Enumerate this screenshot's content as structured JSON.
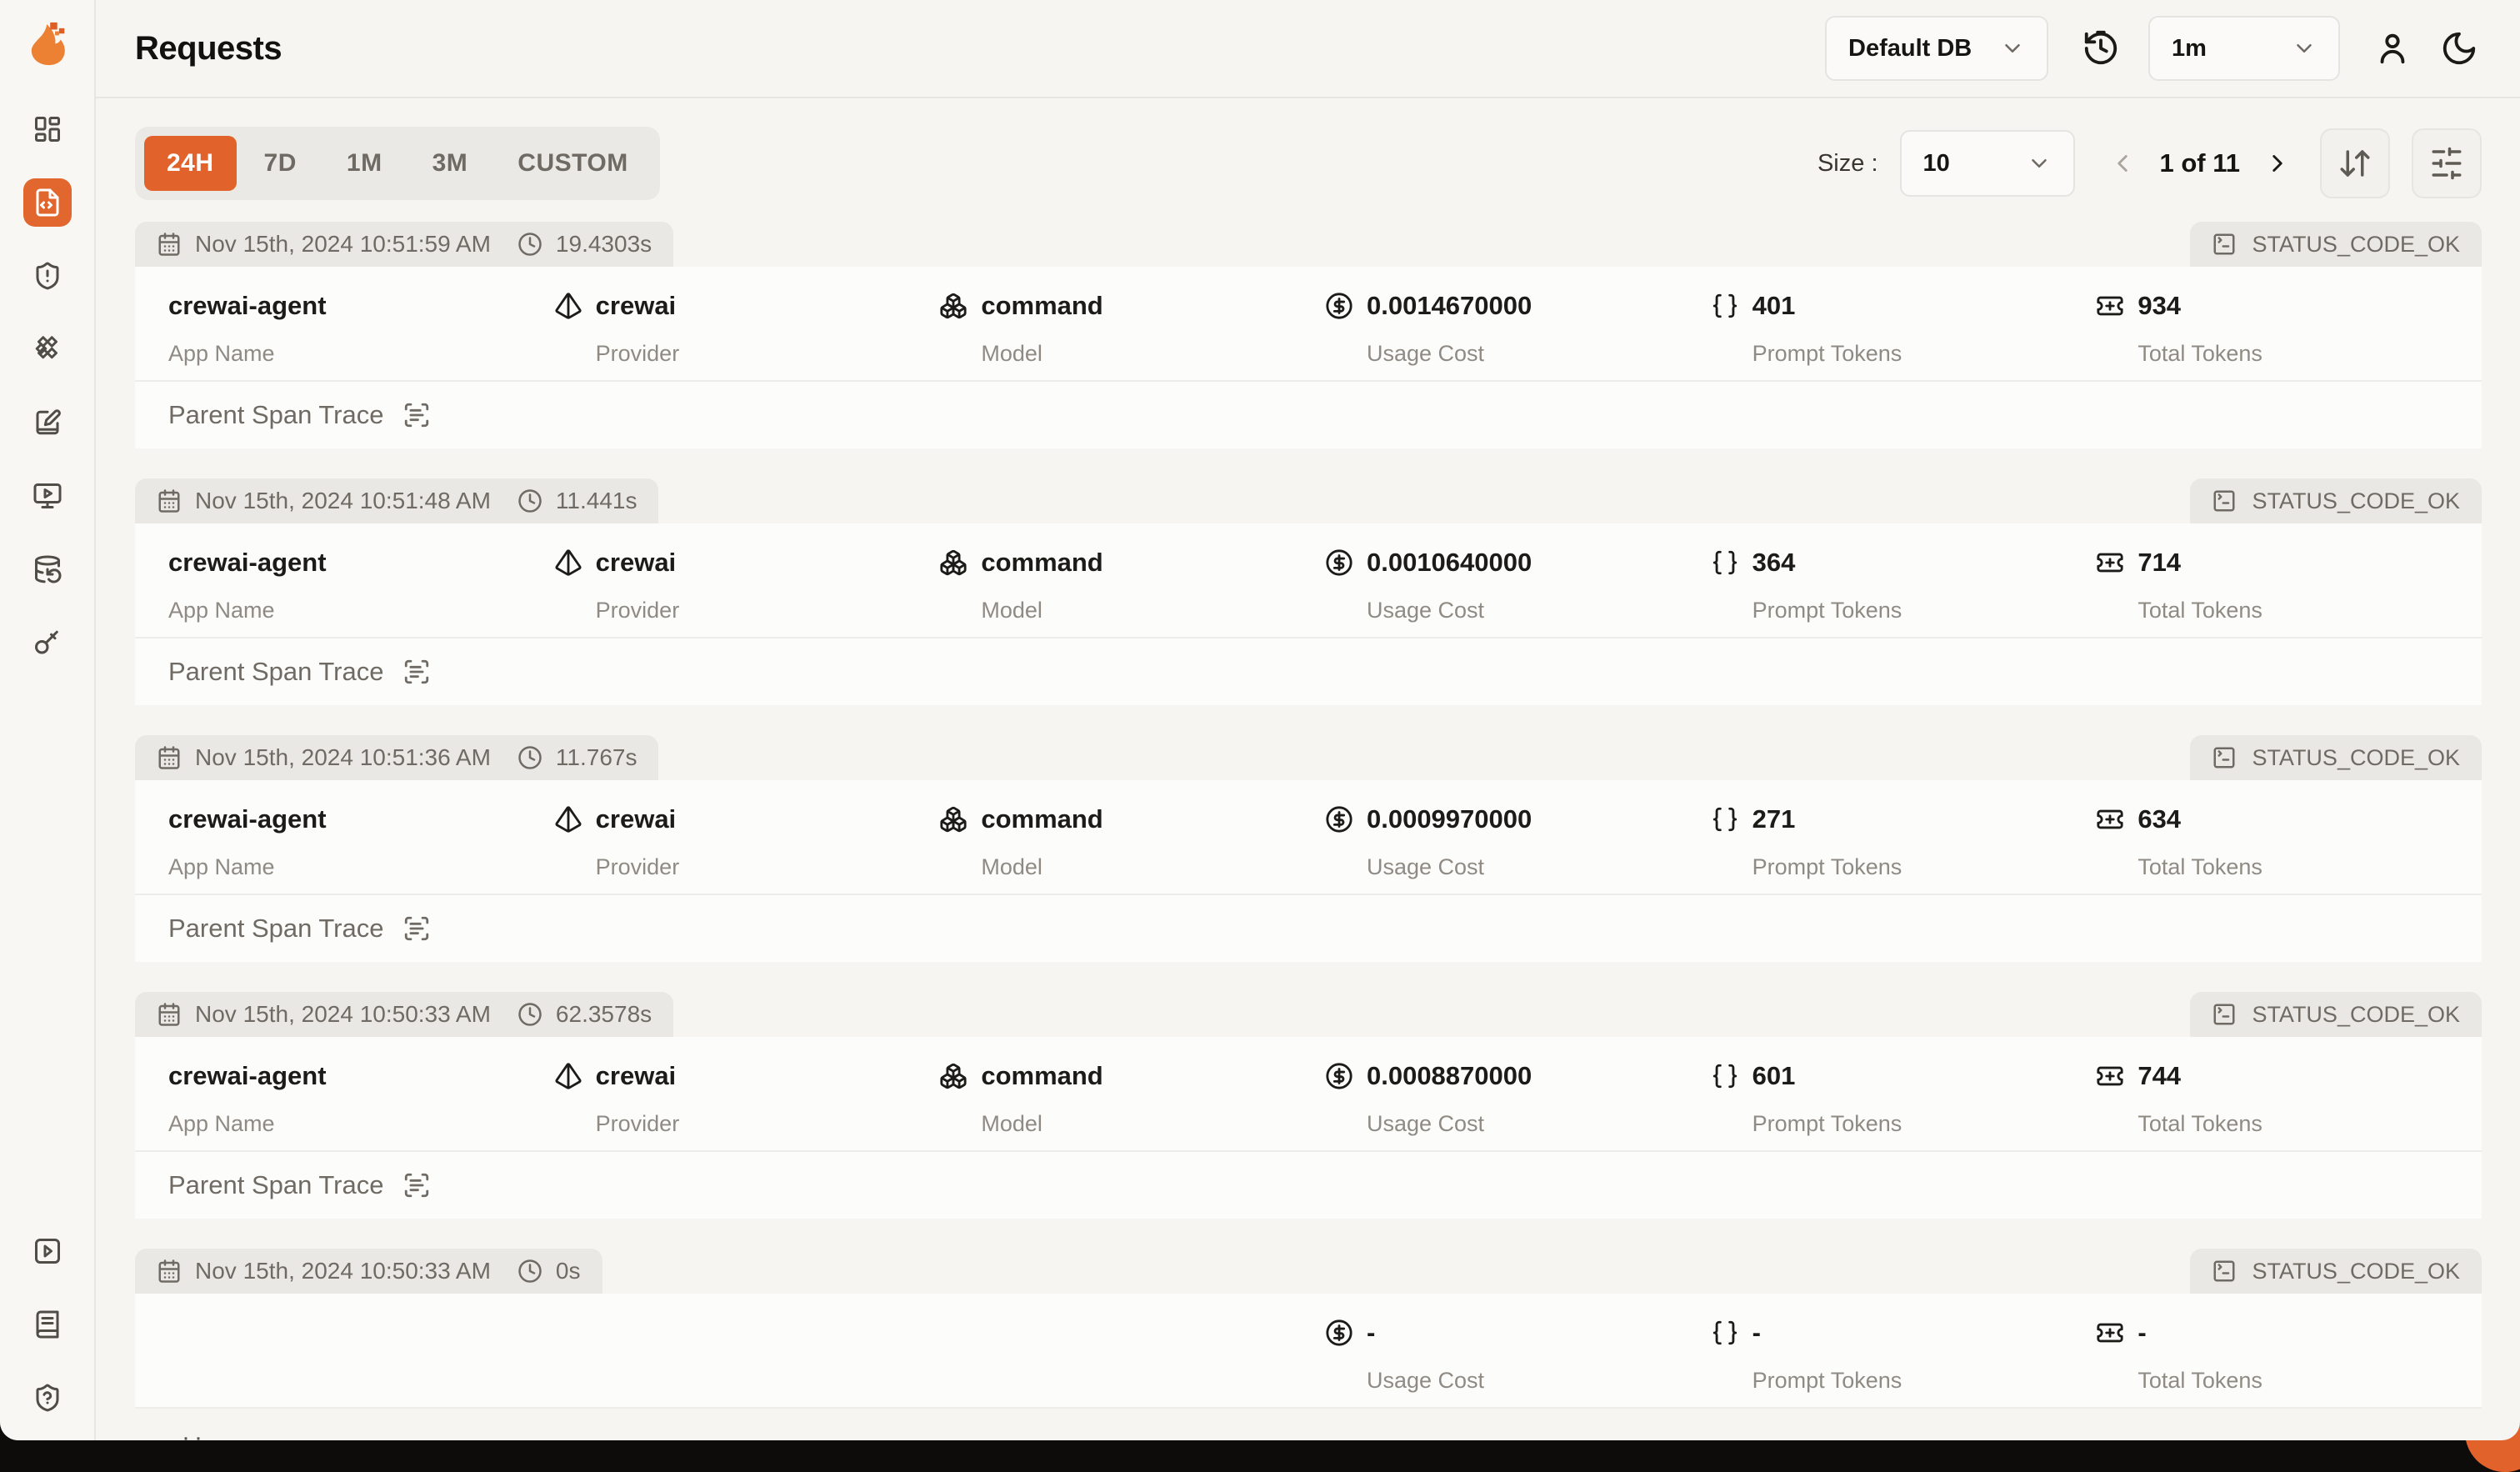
{
  "page": {
    "title": "Requests"
  },
  "topbar": {
    "database_select": {
      "value": "Default DB"
    },
    "refresh_interval_select": {
      "value": "1m"
    }
  },
  "filters": {
    "time_ranges": [
      "24H",
      "7D",
      "1M",
      "3M",
      "CUSTOM"
    ],
    "active_time_range": "24H"
  },
  "toolbar": {
    "size_label": "Size :",
    "size_value": "10",
    "page_status": "1 of 11"
  },
  "request_fields": {
    "app_name": "App Name",
    "provider": "Provider",
    "model": "Model",
    "usage_cost": "Usage Cost",
    "prompt_tokens": "Prompt Tokens",
    "total_tokens": "Total Tokens",
    "parent_span_trace": "Parent Span Trace"
  },
  "requests": [
    {
      "date": "Nov 15th, 2024 10:51:59 AM",
      "duration": "19.4303s",
      "status": "STATUS_CODE_OK",
      "app_name": "crewai-agent",
      "provider": "crewai",
      "model": "command",
      "usage_cost": "0.0014670000",
      "prompt_tokens": "401",
      "total_tokens": "934",
      "show_trace": true
    },
    {
      "date": "Nov 15th, 2024 10:51:48 AM",
      "duration": "11.441s",
      "status": "STATUS_CODE_OK",
      "app_name": "crewai-agent",
      "provider": "crewai",
      "model": "command",
      "usage_cost": "0.0010640000",
      "prompt_tokens": "364",
      "total_tokens": "714",
      "show_trace": true
    },
    {
      "date": "Nov 15th, 2024 10:51:36 AM",
      "duration": "11.767s",
      "status": "STATUS_CODE_OK",
      "app_name": "crewai-agent",
      "provider": "crewai",
      "model": "command",
      "usage_cost": "0.0009970000",
      "prompt_tokens": "271",
      "total_tokens": "634",
      "show_trace": true
    },
    {
      "date": "Nov 15th, 2024 10:50:33 AM",
      "duration": "62.3578s",
      "status": "STATUS_CODE_OK",
      "app_name": "crewai-agent",
      "provider": "crewai",
      "model": "command",
      "usage_cost": "0.0008870000",
      "prompt_tokens": "601",
      "total_tokens": "744",
      "show_trace": true
    },
    {
      "date": "Nov 15th, 2024 10:50:33 AM",
      "duration": "0s",
      "status": "STATUS_CODE_OK",
      "app_name": "",
      "provider": "",
      "model": "",
      "usage_cost": "-",
      "prompt_tokens": "-",
      "total_tokens": "-",
      "show_trace": false
    }
  ],
  "bottom": {
    "clipped_dots": "··"
  },
  "colors": {
    "accent": "#e2622c",
    "page_background": "#f6f5f2",
    "card_background": "#fcfcfa",
    "pill_background": "#eae8e4",
    "muted_text": "#6f6b64",
    "label_text": "#8f8b84"
  },
  "icons": {
    "sidebar": [
      "dashboard",
      "requests",
      "exceptions",
      "prompts",
      "prompt-hub",
      "openground",
      "database-config",
      "api-keys",
      "getting-started",
      "documentation",
      "support"
    ],
    "topbar": [
      "flame-logo",
      "refresh-history",
      "chevron-down",
      "user",
      "moon"
    ],
    "card": [
      "calendar",
      "clock",
      "terminal",
      "pyramid",
      "boxes",
      "circle-dollar",
      "braces",
      "ticket-plus",
      "scan-text"
    ],
    "toolbar": [
      "chevron-left",
      "chevron-right",
      "arrow-down-up",
      "sliders"
    ]
  }
}
